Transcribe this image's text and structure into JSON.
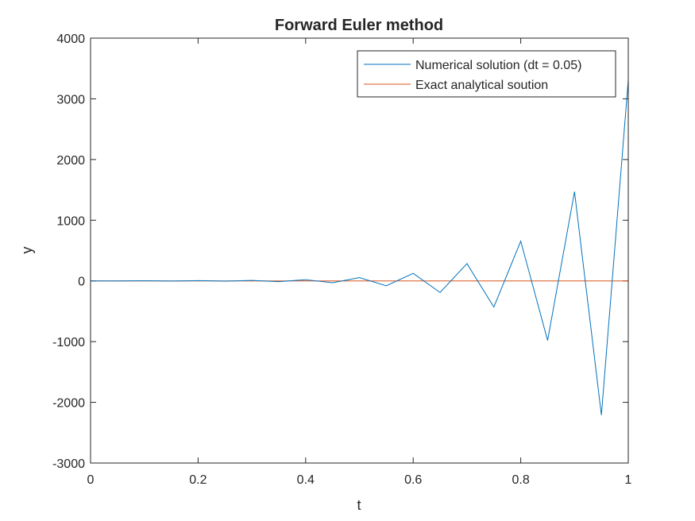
{
  "chart_data": {
    "type": "line",
    "title": "Forward Euler method",
    "xlabel": "t",
    "ylabel": "y",
    "xlim": [
      0,
      1
    ],
    "ylim": [
      -3000,
      4000
    ],
    "xticks": [
      0,
      0.2,
      0.4,
      0.6,
      0.8,
      1
    ],
    "xtick_labels": [
      "0",
      "0.2",
      "0.4",
      "0.6",
      "0.8",
      "1"
    ],
    "yticks": [
      -3000,
      -2000,
      -1000,
      0,
      1000,
      2000,
      3000,
      4000
    ],
    "ytick_labels": [
      "-3000",
      "-2000",
      "-1000",
      "0",
      "1000",
      "2000",
      "3000",
      "4000"
    ],
    "grid": false,
    "legend_position": "top-right",
    "series": [
      {
        "name": "Numerical solution (dt = 0.05)",
        "color": "#0072BD",
        "x": [
          0,
          0.05,
          0.1,
          0.15,
          0.2,
          0.25,
          0.3,
          0.35,
          0.4,
          0.45,
          0.5,
          0.55,
          0.6,
          0.65,
          0.7,
          0.75,
          0.8,
          0.85,
          0.9,
          0.95,
          1.0
        ],
        "y": [
          1,
          -1,
          3,
          -2,
          5,
          -4,
          8,
          -12,
          20,
          -30,
          55,
          -80,
          125,
          -190,
          285,
          -430,
          655,
          -980,
          1470,
          -2210,
          3310
        ]
      },
      {
        "name": "Exact analytical soution",
        "color": "#D95319",
        "x": [
          0,
          0.05,
          0.1,
          0.15,
          0.2,
          0.25,
          0.3,
          0.35,
          0.4,
          0.45,
          0.5,
          0.55,
          0.6,
          0.65,
          0.7,
          0.75,
          0.8,
          0.85,
          0.9,
          0.95,
          1.0
        ],
        "y": [
          0,
          0,
          0,
          0,
          0,
          0,
          0,
          0,
          0,
          0,
          0,
          0,
          0,
          0,
          0,
          0,
          0,
          0,
          0,
          0,
          0
        ]
      }
    ]
  }
}
